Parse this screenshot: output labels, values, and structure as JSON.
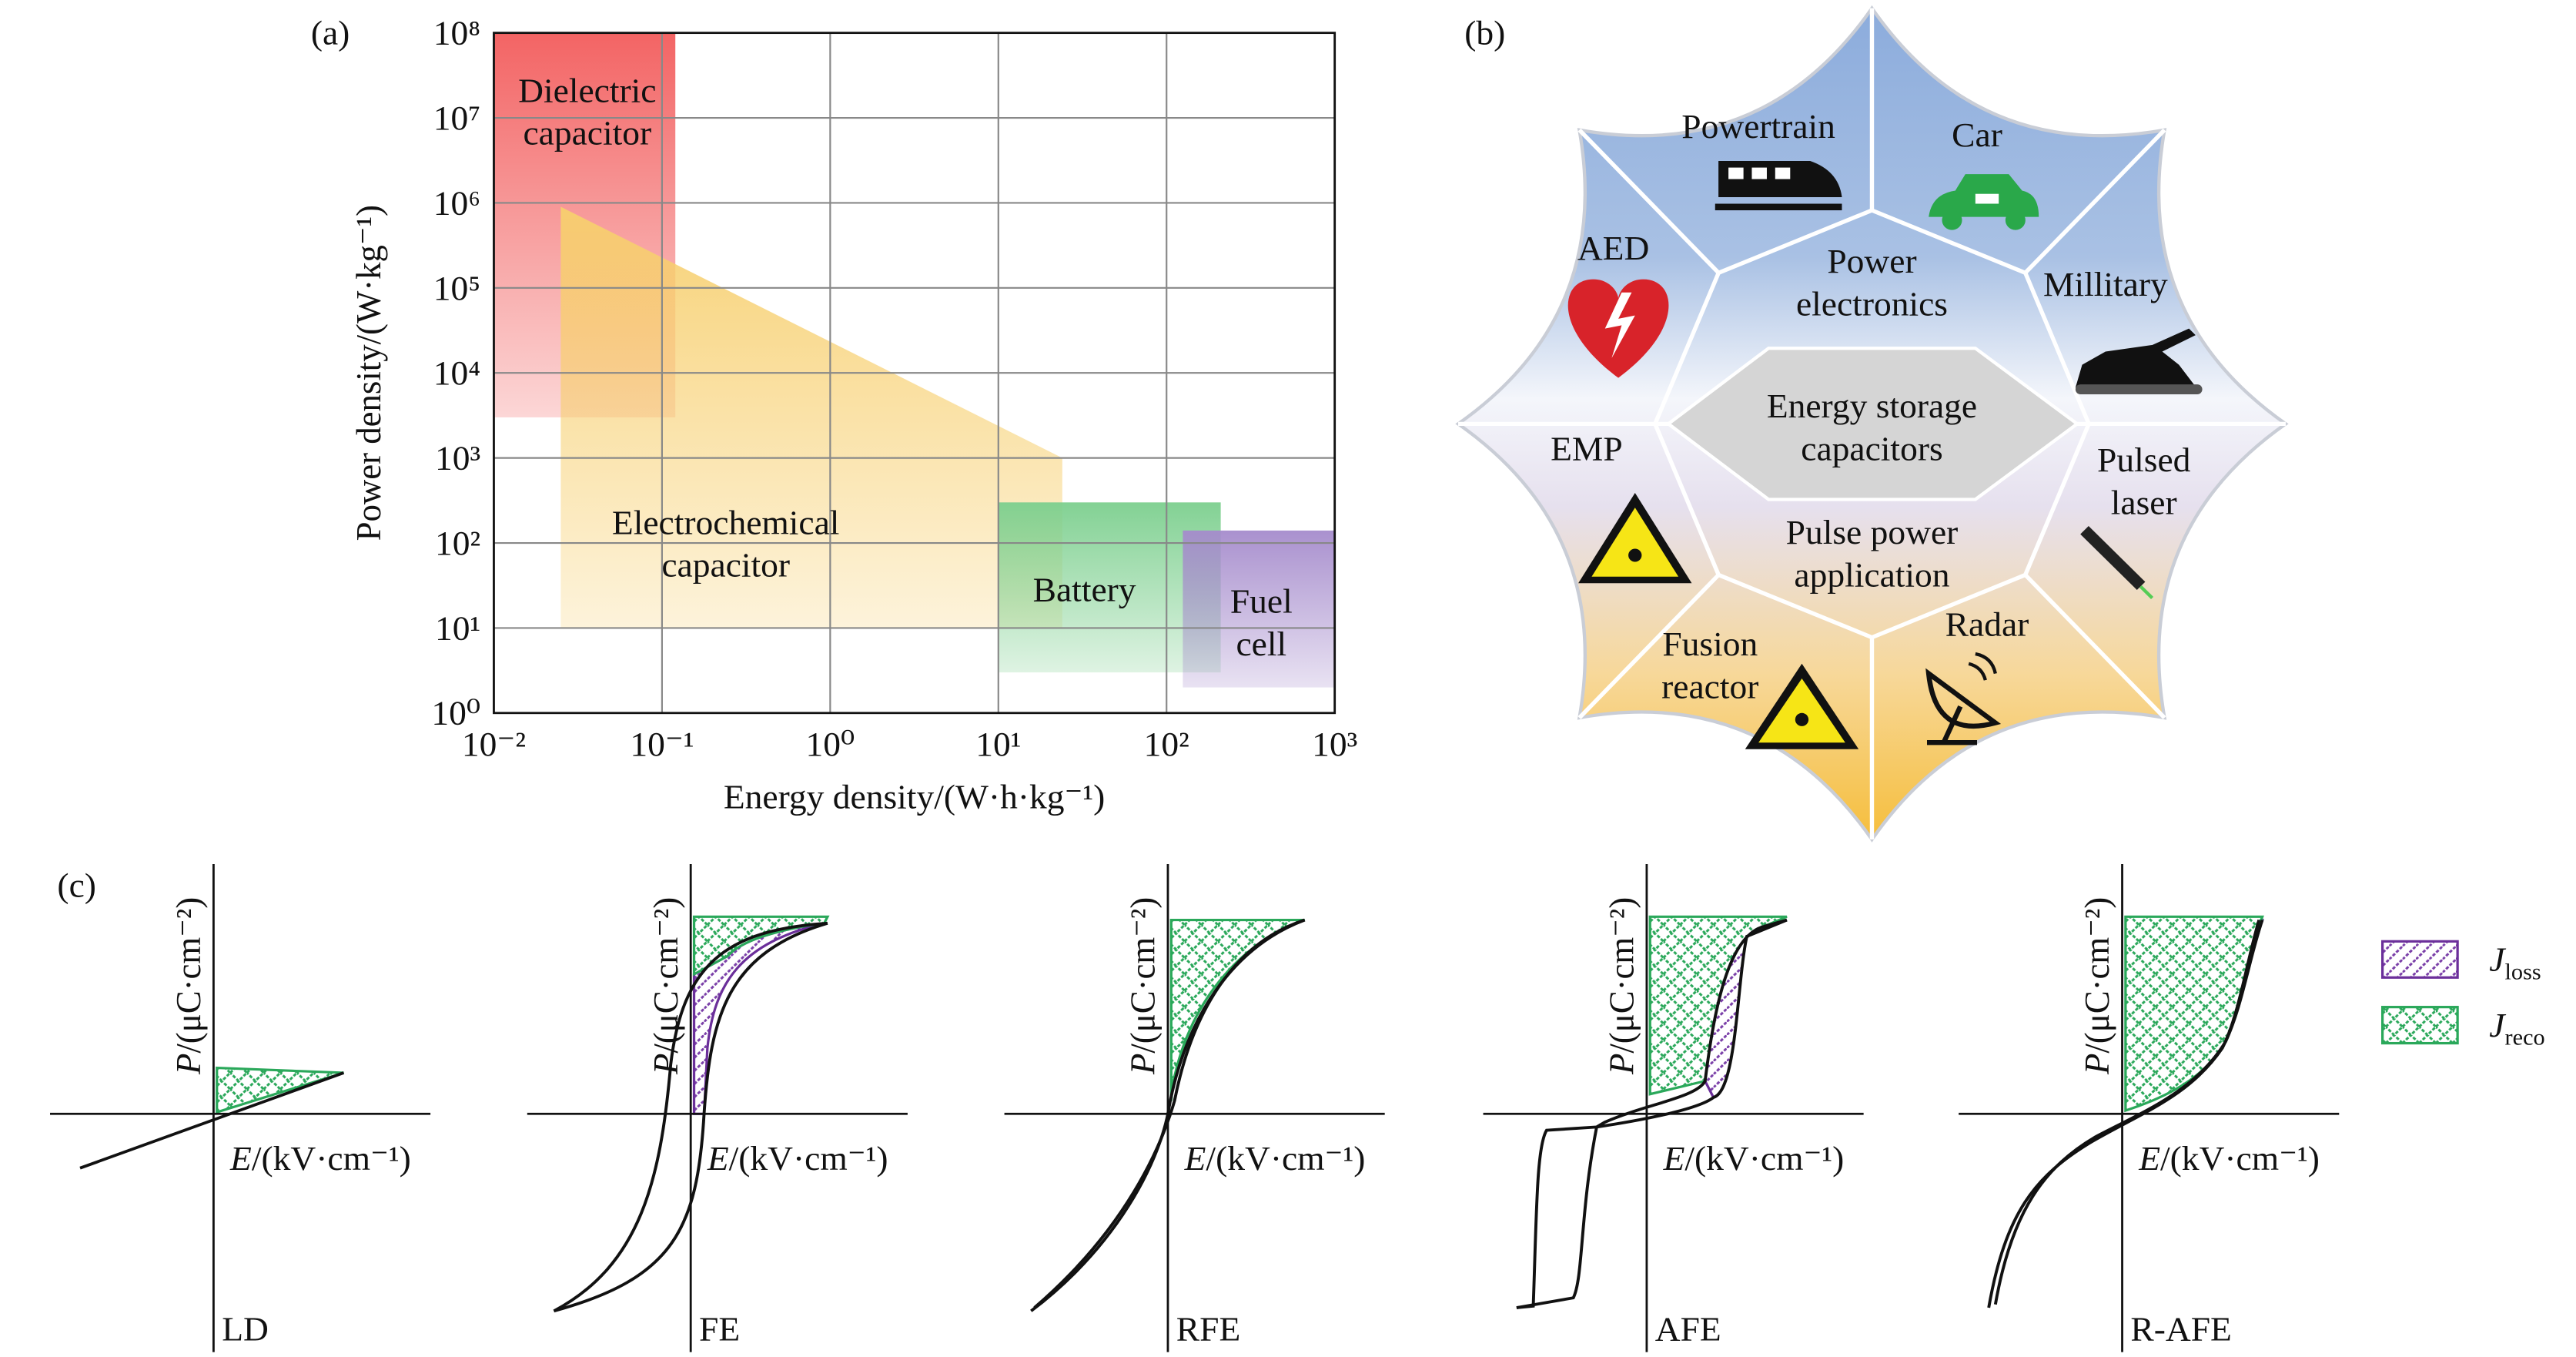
{
  "chart_data": {
    "type": "ragone",
    "panel_label": "(a)",
    "x_label": "Energy density/(W·h·kg⁻¹)",
    "y_label": "Power density/(W·kg⁻¹)",
    "xscale": "log",
    "yscale": "log",
    "grid": true,
    "xlim": [
      0.01,
      1000
    ],
    "ylim": [
      1,
      100000000
    ],
    "xticks": [
      {
        "value": 0.01,
        "label": "10⁻²"
      },
      {
        "value": 0.1,
        "label": "10⁻¹"
      },
      {
        "value": 1,
        "label": "10⁰"
      },
      {
        "value": 10,
        "label": "10¹"
      },
      {
        "value": 100,
        "label": "10²"
      },
      {
        "value": 1000,
        "label": "10³"
      }
    ],
    "yticks": [
      {
        "value": 1,
        "label": "10⁰"
      },
      {
        "value": 10,
        "label": "10¹"
      },
      {
        "value": 100,
        "label": "10²"
      },
      {
        "value": 1000,
        "label": "10³"
      },
      {
        "value": 10000,
        "label": "10⁴"
      },
      {
        "value": 100000,
        "label": "10⁵"
      },
      {
        "value": 1000000,
        "label": "10⁶"
      },
      {
        "value": 10000000,
        "label": "10⁷"
      },
      {
        "value": 100000000,
        "label": "10⁸"
      }
    ],
    "series": [
      {
        "label_lines": [
          "Dielectric",
          "capacitor"
        ],
        "color": "#f25c5c",
        "x": [
          0.01,
          0.12
        ],
        "y": [
          3000,
          100000000
        ]
      },
      {
        "label_lines": [
          "Electrochemical",
          "capacitor"
        ],
        "color": "#f7cf6e",
        "shape": "polygon",
        "x": [
          0.025,
          0.025,
          24,
          24
        ],
        "y": [
          10,
          900000,
          1000,
          10
        ]
      },
      {
        "label_lines": [
          "Battery"
        ],
        "color": "#7ccf8e",
        "x": [
          10,
          210
        ],
        "y": [
          3,
          300
        ]
      },
      {
        "label_lines": [
          "Fuel",
          "cell"
        ],
        "color": "#a58bcc",
        "x": [
          125,
          1000
        ],
        "y": [
          2,
          140
        ]
      }
    ]
  },
  "diagram": {
    "panel_label": "(b)",
    "labels": [
      {
        "lines": [
          "Powertrain"
        ]
      },
      {
        "lines": [
          "Car"
        ]
      },
      {
        "lines": [
          "AED"
        ]
      },
      {
        "lines": [
          "Power",
          "electronics"
        ]
      },
      {
        "lines": [
          "Millitary"
        ]
      },
      {
        "lines": [
          "Energy storage",
          "capacitors"
        ]
      },
      {
        "lines": [
          "EMP"
        ]
      },
      {
        "lines": [
          "Pulsed",
          "laser"
        ]
      },
      {
        "lines": [
          "Pulse power",
          "application"
        ]
      },
      {
        "lines": [
          "Fusion",
          "reactor"
        ]
      },
      {
        "lines": [
          "Radar"
        ]
      }
    ]
  },
  "hysteresis": {
    "panel_label": "(c)",
    "y_label": {
      "symbol": "P",
      "unit": "/(μC·cm⁻²)"
    },
    "x_label": {
      "symbol": "E",
      "unit": "/(kV·cm⁻¹)"
    },
    "plots": [
      {
        "label": "LD"
      },
      {
        "label": "FE"
      },
      {
        "label": "RFE"
      },
      {
        "label": "AFE"
      },
      {
        "label": "R-AFE"
      }
    ],
    "legend": [
      {
        "symbol": "J",
        "subscript": "loss"
      },
      {
        "symbol": "J",
        "subscript": "reco"
      }
    ]
  }
}
